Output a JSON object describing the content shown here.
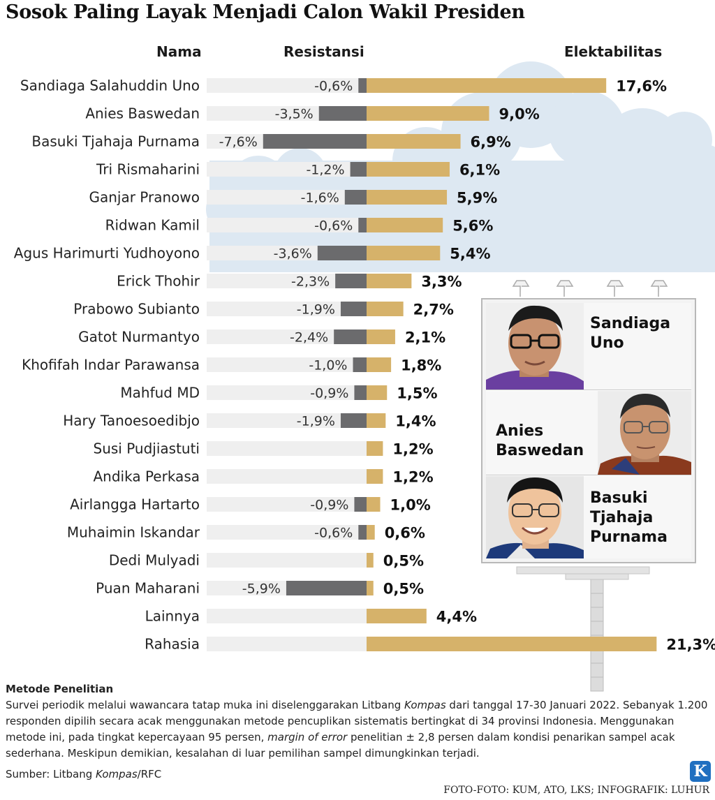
{
  "title": "Sosok Paling Layak Menjadi Calon Wakil Presiden",
  "headers": {
    "name": "Nama",
    "resistance": "Resistansi",
    "electability": "Elektabilitas"
  },
  "colors": {
    "electability_bar": "#d6b26a",
    "resistance_bar": "#6b6b6d",
    "row_shade": "#efefef",
    "sky": "#dde8f2"
  },
  "chart_data": {
    "type": "bar",
    "title": "Sosok Paling Layak Menjadi Calon Wakil Presiden",
    "categories": [
      "Sandiaga Salahuddin Uno",
      "Anies Baswedan",
      "Basuki Tjahaja Purnama",
      "Tri Rismaharini",
      "Ganjar Pranowo",
      "Ridwan Kamil",
      "Agus Harimurti Yudhoyono",
      "Erick Thohir",
      "Prabowo Subianto",
      "Gatot Nurmantyo",
      "Khofifah Indar Parawansa",
      "Mahfud MD",
      "Hary Tanoesoedibjo",
      "Susi Pudjiastuti",
      "Andika Perkasa",
      "Airlangga Hartarto",
      "Muhaimin Iskandar",
      "Dedi Mulyadi",
      "Puan Maharani",
      "Lainnya",
      "Rahasia"
    ],
    "series": [
      {
        "name": "Elektabilitas",
        "values": [
          17.6,
          9.0,
          6.9,
          6.1,
          5.9,
          5.6,
          5.4,
          3.3,
          2.7,
          2.1,
          1.8,
          1.5,
          1.4,
          1.2,
          1.2,
          1.0,
          0.6,
          0.5,
          0.5,
          4.4,
          21.3
        ]
      },
      {
        "name": "Resistansi",
        "values": [
          -0.6,
          -3.5,
          -7.6,
          -1.2,
          -1.6,
          -0.6,
          -3.6,
          -2.3,
          -1.9,
          -2.4,
          -1.0,
          -0.9,
          -1.9,
          null,
          null,
          -0.9,
          -0.6,
          null,
          -5.9,
          null,
          null
        ]
      }
    ],
    "electability_labels": [
      "17,6%",
      "9,0%",
      "6,9%",
      "6,1%",
      "5,9%",
      "5,6%",
      "5,4%",
      "3,3%",
      "2,7%",
      "2,1%",
      "1,8%",
      "1,5%",
      "1,4%",
      "1,2%",
      "1,2%",
      "1,0%",
      "0,6%",
      "0,5%",
      "0,5%",
      "4,4%",
      "21,3%"
    ],
    "resistance_labels": [
      "-0,6%",
      "-3,5%",
      "-7,6%",
      "-1,2%",
      "-1,6%",
      "-0,6%",
      "-3,6%",
      "-2,3%",
      "-1,9%",
      "-2,4%",
      "-1,0%",
      "-0,9%",
      "-1,9%",
      "",
      "",
      "-0,9%",
      "-0,6%",
      "",
      "-5,9%",
      "",
      ""
    ],
    "xlabel": "",
    "ylabel": ""
  },
  "billboard": {
    "people": [
      "Sandiaga Uno",
      "Anies Baswedan",
      "Basuki Tjahaja Purnama"
    ],
    "labels": {
      "p1a": "Sandiaga",
      "p1b": "Uno",
      "p2a": "Anies",
      "p2b": "Baswedan",
      "p3a": "Basuki",
      "p3b": "Tjahaja",
      "p3c": "Purnama"
    }
  },
  "method": {
    "heading": "Metode Penelitian",
    "t1": "Survei periodik melalui wawancara tatap muka ini diselenggarakan Litbang ",
    "t1i": "Kompas",
    "t2": " dari tanggal 17-30 Januari 2022. Sebanyak 1.200 responden dipilih secara acak menggunakan metode pencuplikan sistematis bertingkat di 34 provinsi Indonesia. Menggunakan metode ini, pada tingkat kepercayaan 95 persen, ",
    "t2i": "margin of error",
    "t3": " penelitian ± 2,8 persen dalam kondisi penarikan sampel acak sederhana. Meskipun demikian, kesalahan di luar pemilihan sampel dimungkinkan terjadi."
  },
  "source": {
    "prefix": "Sumber: Litbang ",
    "italic": "Kompas",
    "suffix": "/RFC"
  },
  "credit": "FOTO-FOTO: KUM, ATO, LKS; INFOGRAFIK: LUHUR",
  "logo": "K"
}
